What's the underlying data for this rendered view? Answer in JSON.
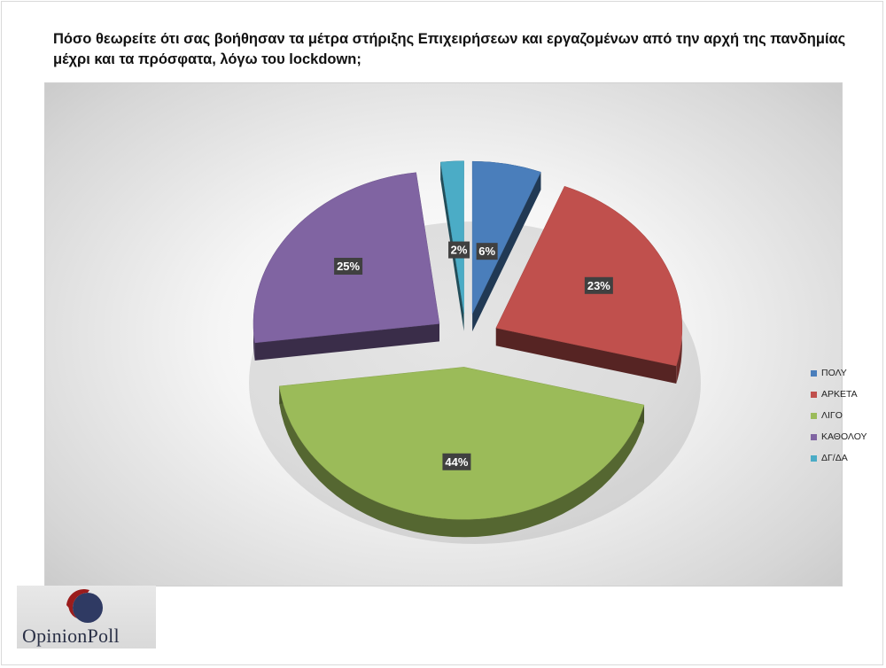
{
  "title": "Πόσο θεωρείτε ότι σας βοήθησαν τα μέτρα στήριξης Επιχειρήσεων και εργαζομένων από την αρχή της πανδημίας μέχρι και τα πρόσφατα, λόγω του lockdown;",
  "logo": {
    "text": "OpinionPoll",
    "colors": {
      "ring": "#9b1c1c",
      "disc": "#2f3a63"
    }
  },
  "chart_data": {
    "type": "pie",
    "style": "3d-exploded",
    "title": "Πόσο θεωρείτε ότι σας βοήθησαν τα μέτρα στήριξης Επιχειρήσεων και εργαζομένων από την αρχή της πανδημίας μέχρι και τα πρόσφατα, λόγω του lockdown;",
    "legend_position": "right",
    "slices": [
      {
        "label": "ΠΟΛΥ",
        "value": 6,
        "display": "6%",
        "color": "#4a7ebb"
      },
      {
        "label": "ΑΡΚΕΤΑ",
        "value": 23,
        "display": "23%",
        "color": "#c0504d"
      },
      {
        "label": "ΛΙΓΟ",
        "value": 44,
        "display": "44%",
        "color": "#9bbb59"
      },
      {
        "label": "ΚΑΘΟΛΟΥ",
        "value": 25,
        "display": "25%",
        "color": "#8064a2"
      },
      {
        "label": "ΔΓ/ΔΑ",
        "value": 2,
        "display": "2%",
        "color": "#4bacc6"
      }
    ]
  }
}
